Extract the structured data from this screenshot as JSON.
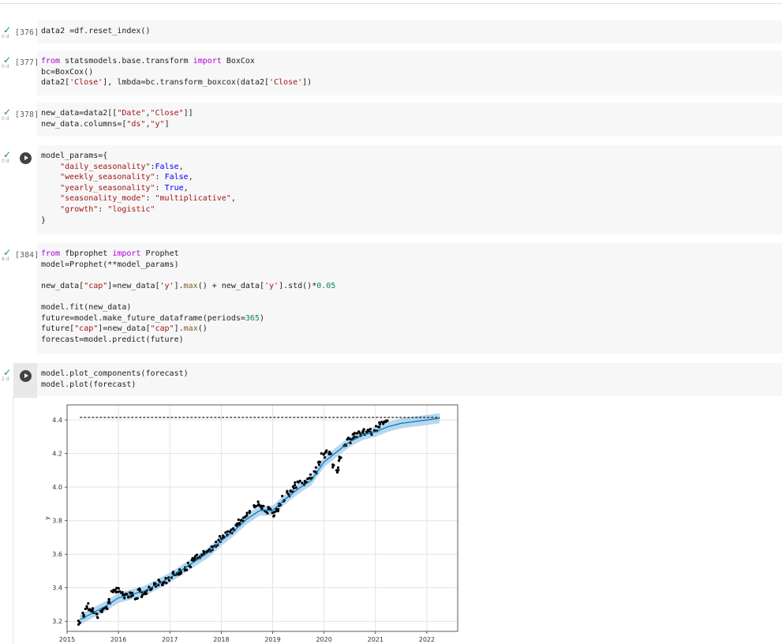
{
  "cells": [
    {
      "exec": "[376]",
      "dur": "0 d",
      "tokens": [
        [
          [
            "data2 =df.reset_index()",
            ""
          ]
        ]
      ]
    },
    {
      "exec": "[377]",
      "dur": "0 d",
      "tokens": [
        [
          [
            "from",
            "kw"
          ],
          [
            " statsmodels.base.transform ",
            ""
          ],
          [
            "import",
            "kw"
          ],
          [
            " BoxCox",
            ""
          ]
        ],
        [
          [
            "bc=BoxCox()",
            ""
          ]
        ],
        [
          [
            "data2[",
            ""
          ],
          [
            "'Close'",
            "str"
          ],
          [
            "], lmbda=bc.transform_boxcox(data2[",
            ""
          ],
          [
            "'Close'",
            "str"
          ],
          [
            "])",
            ""
          ]
        ]
      ]
    },
    {
      "exec": "[378]",
      "dur": "0 d",
      "tokens": [
        [
          [
            "new_data=data2[[",
            ""
          ],
          [
            "\"Date\"",
            "str"
          ],
          [
            ",",
            ""
          ],
          [
            "\"Close\"",
            "str"
          ],
          [
            "]]",
            ""
          ]
        ],
        [
          [
            "new_data.columns=[",
            ""
          ],
          [
            "\"ds\"",
            "str"
          ],
          [
            ",",
            ""
          ],
          [
            "\"y\"",
            "str"
          ],
          [
            "]",
            ""
          ]
        ]
      ]
    },
    {
      "exec": "",
      "dur": "0 d",
      "tokens": [
        [
          [
            "model_params={",
            ""
          ]
        ],
        [
          [
            "    ",
            ""
          ],
          [
            "\"daily_seasonality\"",
            "str"
          ],
          [
            ":",
            ""
          ],
          [
            "False",
            "con"
          ],
          [
            ",",
            ""
          ]
        ],
        [
          [
            "    ",
            ""
          ],
          [
            "\"weekly_seasonality\"",
            "str"
          ],
          [
            ": ",
            ""
          ],
          [
            "False",
            "con"
          ],
          [
            ",",
            ""
          ]
        ],
        [
          [
            "    ",
            ""
          ],
          [
            "\"yearly_seasonality\"",
            "str"
          ],
          [
            ": ",
            ""
          ],
          [
            "True",
            "con"
          ],
          [
            ",",
            ""
          ]
        ],
        [
          [
            "    ",
            ""
          ],
          [
            "\"seasonality_mode\"",
            "str"
          ],
          [
            ": ",
            ""
          ],
          [
            "\"multiplicative\"",
            "str"
          ],
          [
            ",",
            ""
          ]
        ],
        [
          [
            "    ",
            ""
          ],
          [
            "\"growth\"",
            "str"
          ],
          [
            ": ",
            ""
          ],
          [
            "\"logistic\"",
            "str"
          ]
        ],
        [
          [
            "}",
            ""
          ]
        ]
      ]
    },
    {
      "exec": "[384]",
      "dur": "8 d",
      "tokens": [
        [
          [
            "from",
            "kw"
          ],
          [
            " fbprophet ",
            ""
          ],
          [
            "import",
            "kw"
          ],
          [
            " Prophet",
            ""
          ]
        ],
        [
          [
            "model=Prophet(**model_params)",
            ""
          ]
        ],
        [
          [
            "",
            ""
          ]
        ],
        [
          [
            "new_data[",
            ""
          ],
          [
            "\"cap\"",
            "str"
          ],
          [
            "]=new_data[",
            ""
          ],
          [
            "'y'",
            "str"
          ],
          [
            "].",
            ""
          ],
          [
            "max",
            "fn"
          ],
          [
            "() + new_data[",
            ""
          ],
          [
            "'y'",
            "str"
          ],
          [
            "].std()*",
            ""
          ],
          [
            "0.05",
            "num"
          ]
        ],
        [
          [
            "",
            ""
          ]
        ],
        [
          [
            "model.fit(new_data)",
            ""
          ]
        ],
        [
          [
            "future=model.make_future_dataframe(periods=",
            ""
          ],
          [
            "365",
            "num"
          ],
          [
            ")",
            ""
          ]
        ],
        [
          [
            "future[",
            ""
          ],
          [
            "\"cap\"",
            "str"
          ],
          [
            "]=new_data[",
            ""
          ],
          [
            "\"cap\"",
            "str"
          ],
          [
            "].",
            ""
          ],
          [
            "max",
            "fn"
          ],
          [
            "()",
            ""
          ]
        ],
        [
          [
            "forecast=model.predict(future)",
            ""
          ]
        ]
      ]
    },
    {
      "exec": "",
      "dur": "2 d",
      "tokens": [
        [
          [
            "model.plot_components(forecast)",
            ""
          ]
        ],
        [
          [
            "model.plot(forecast)",
            ""
          ]
        ]
      ]
    }
  ],
  "chart_data": {
    "type": "line",
    "title": "",
    "xlabel": "",
    "ylabel": "y",
    "x_ticks": [
      "2015",
      "2016",
      "2017",
      "2018",
      "2019",
      "2020",
      "2021",
      "2022"
    ],
    "y_ticks": [
      "3.2",
      "3.4",
      "3.6",
      "3.8",
      "4.0",
      "4.2",
      "4.4"
    ],
    "xlim": [
      2015.0,
      2022.6
    ],
    "ylim": [
      3.14,
      4.49
    ],
    "grid": true,
    "cap": 4.415,
    "forecast_color": "#0072b2",
    "interval_color": "#9ecae9",
    "cap_color": "#000000",
    "observed_color": "#000000",
    "observed": [
      [
        2015.25,
        3.19
      ],
      [
        2015.32,
        3.24
      ],
      [
        2015.38,
        3.29
      ],
      [
        2015.45,
        3.27
      ],
      [
        2015.52,
        3.26
      ],
      [
        2015.6,
        3.23
      ],
      [
        2015.68,
        3.27
      ],
      [
        2015.75,
        3.28
      ],
      [
        2015.82,
        3.32
      ],
      [
        2015.88,
        3.37
      ],
      [
        2015.95,
        3.39
      ],
      [
        2016.02,
        3.38
      ],
      [
        2016.08,
        3.36
      ],
      [
        2016.15,
        3.35
      ],
      [
        2016.22,
        3.36
      ],
      [
        2016.28,
        3.37
      ],
      [
        2016.35,
        3.35
      ],
      [
        2016.42,
        3.38
      ],
      [
        2016.48,
        3.36
      ],
      [
        2016.55,
        3.37
      ],
      [
        2016.62,
        3.39
      ],
      [
        2016.7,
        3.41
      ],
      [
        2016.78,
        3.43
      ],
      [
        2016.85,
        3.42
      ],
      [
        2016.92,
        3.44
      ],
      [
        2017.0,
        3.46
      ],
      [
        2017.08,
        3.48
      ],
      [
        2017.15,
        3.49
      ],
      [
        2017.22,
        3.5
      ],
      [
        2017.3,
        3.52
      ],
      [
        2017.38,
        3.54
      ],
      [
        2017.45,
        3.56
      ],
      [
        2017.52,
        3.58
      ],
      [
        2017.6,
        3.59
      ],
      [
        2017.68,
        3.61
      ],
      [
        2017.75,
        3.62
      ],
      [
        2017.82,
        3.63
      ],
      [
        2017.9,
        3.66
      ],
      [
        2017.98,
        3.69
      ],
      [
        2018.05,
        3.71
      ],
      [
        2018.12,
        3.73
      ],
      [
        2018.2,
        3.74
      ],
      [
        2018.28,
        3.76
      ],
      [
        2018.35,
        3.79
      ],
      [
        2018.42,
        3.81
      ],
      [
        2018.5,
        3.83
      ],
      [
        2018.58,
        3.86
      ],
      [
        2018.65,
        3.88
      ],
      [
        2018.72,
        3.9
      ],
      [
        2018.8,
        3.88
      ],
      [
        2018.88,
        3.86
      ],
      [
        2018.95,
        3.87
      ],
      [
        2019.0,
        3.84
      ],
      [
        2019.08,
        3.86
      ],
      [
        2019.15,
        3.89
      ],
      [
        2019.22,
        3.93
      ],
      [
        2019.3,
        3.96
      ],
      [
        2019.38,
        3.99
      ],
      [
        2019.45,
        4.01
      ],
      [
        2019.52,
        4.03
      ],
      [
        2019.6,
        4.03
      ],
      [
        2019.68,
        4.04
      ],
      [
        2019.75,
        4.06
      ],
      [
        2019.82,
        4.1
      ],
      [
        2019.9,
        4.14
      ],
      [
        2019.98,
        4.19
      ],
      [
        2020.05,
        4.22
      ],
      [
        2020.12,
        4.21
      ],
      [
        2020.2,
        4.13
      ],
      [
        2020.25,
        4.1
      ],
      [
        2020.32,
        4.17
      ],
      [
        2020.4,
        4.24
      ],
      [
        2020.48,
        4.28
      ],
      [
        2020.55,
        4.3
      ],
      [
        2020.62,
        4.31
      ],
      [
        2020.7,
        4.32
      ],
      [
        2020.78,
        4.33
      ],
      [
        2020.85,
        4.34
      ],
      [
        2020.92,
        4.33
      ],
      [
        2021.0,
        4.35
      ],
      [
        2021.08,
        4.37
      ],
      [
        2021.15,
        4.38
      ],
      [
        2021.22,
        4.38
      ]
    ],
    "forecast": [
      [
        2015.25,
        3.21
      ],
      [
        2015.5,
        3.25
      ],
      [
        2015.75,
        3.29
      ],
      [
        2016.0,
        3.34
      ],
      [
        2016.25,
        3.36
      ],
      [
        2016.5,
        3.38
      ],
      [
        2016.75,
        3.42
      ],
      [
        2017.0,
        3.46
      ],
      [
        2017.25,
        3.51
      ],
      [
        2017.5,
        3.56
      ],
      [
        2017.75,
        3.61
      ],
      [
        2018.0,
        3.68
      ],
      [
        2018.25,
        3.74
      ],
      [
        2018.5,
        3.81
      ],
      [
        2018.75,
        3.86
      ],
      [
        2019.0,
        3.86
      ],
      [
        2019.25,
        3.93
      ],
      [
        2019.5,
        3.99
      ],
      [
        2019.75,
        4.04
      ],
      [
        2020.0,
        4.15
      ],
      [
        2020.25,
        4.21
      ],
      [
        2020.5,
        4.27
      ],
      [
        2020.75,
        4.31
      ],
      [
        2021.0,
        4.33
      ],
      [
        2021.25,
        4.36
      ],
      [
        2021.5,
        4.38
      ],
      [
        2021.75,
        4.39
      ],
      [
        2022.0,
        4.4
      ],
      [
        2022.25,
        4.41
      ]
    ]
  }
}
